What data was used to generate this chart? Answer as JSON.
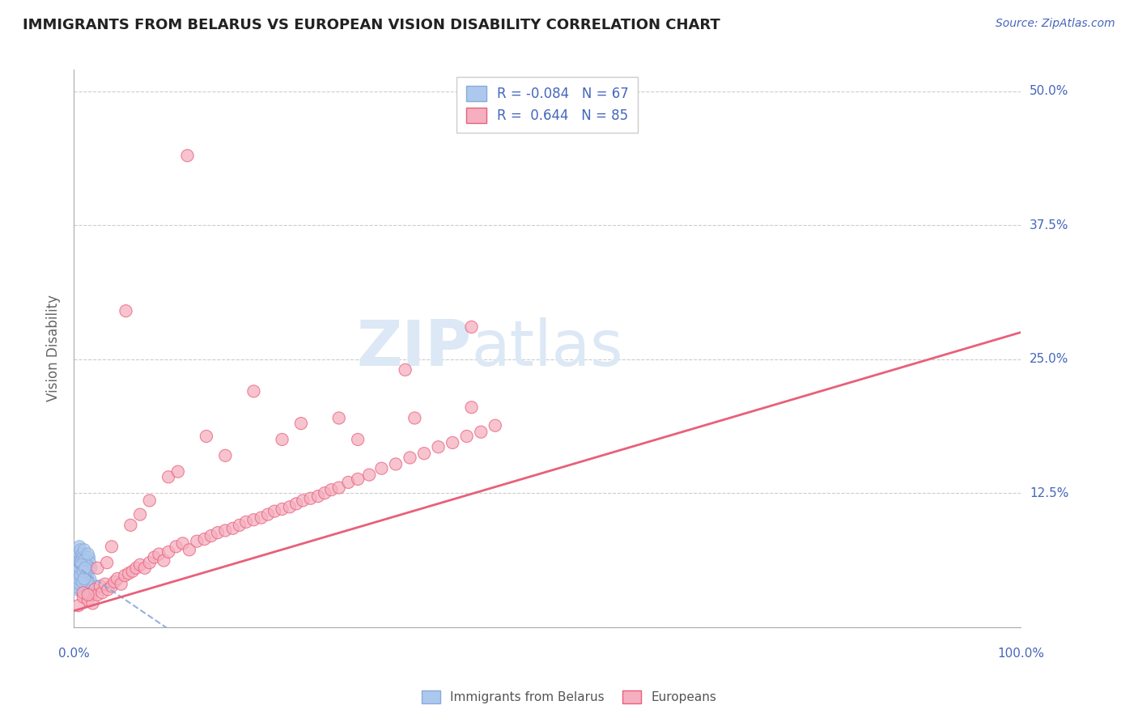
{
  "title": "IMMIGRANTS FROM BELARUS VS EUROPEAN VISION DISABILITY CORRELATION CHART",
  "source": "Source: ZipAtlas.com",
  "ylabel": "Vision Disability",
  "xlim": [
    0.0,
    1.0
  ],
  "ylim": [
    0.0,
    0.52
  ],
  "x_ticks": [
    0.0,
    0.25,
    0.5,
    0.75,
    1.0
  ],
  "y_ticks": [
    0.0,
    0.125,
    0.25,
    0.375,
    0.5
  ],
  "y_tick_labels": [
    "",
    "12.5%",
    "25.0%",
    "37.5%",
    "50.0%"
  ],
  "legend_r_blue": "-0.084",
  "legend_n_blue": "67",
  "legend_r_pink": "0.644",
  "legend_n_pink": "85",
  "blue_color": "#adc8ee",
  "pink_color": "#f5afc0",
  "line_blue_color": "#8aaad8",
  "line_pink_color": "#e8607a",
  "title_color": "#222222",
  "axis_label_color": "#4466bb",
  "watermark_color": "#dce8f5",
  "background_color": "#ffffff",
  "blue_scatter_x": [
    0.002,
    0.003,
    0.003,
    0.004,
    0.004,
    0.004,
    0.005,
    0.005,
    0.005,
    0.005,
    0.006,
    0.006,
    0.006,
    0.006,
    0.006,
    0.007,
    0.007,
    0.007,
    0.007,
    0.008,
    0.008,
    0.008,
    0.009,
    0.009,
    0.009,
    0.01,
    0.01,
    0.01,
    0.011,
    0.011,
    0.011,
    0.012,
    0.012,
    0.013,
    0.013,
    0.014,
    0.014,
    0.015,
    0.015,
    0.016,
    0.016,
    0.017,
    0.017,
    0.018,
    0.018,
    0.003,
    0.004,
    0.005,
    0.006,
    0.007,
    0.008,
    0.009,
    0.01,
    0.011,
    0.012,
    0.013,
    0.014,
    0.015,
    0.004,
    0.005,
    0.006,
    0.007,
    0.008,
    0.009,
    0.01,
    0.011,
    0.012
  ],
  "blue_scatter_y": [
    0.04,
    0.038,
    0.052,
    0.035,
    0.045,
    0.06,
    0.042,
    0.055,
    0.065,
    0.07,
    0.038,
    0.048,
    0.058,
    0.068,
    0.075,
    0.04,
    0.05,
    0.062,
    0.072,
    0.035,
    0.048,
    0.065,
    0.042,
    0.055,
    0.068,
    0.038,
    0.052,
    0.065,
    0.04,
    0.058,
    0.072,
    0.045,
    0.06,
    0.042,
    0.065,
    0.048,
    0.058,
    0.038,
    0.055,
    0.042,
    0.065,
    0.045,
    0.06,
    0.038,
    0.055,
    0.043,
    0.037,
    0.05,
    0.04,
    0.06,
    0.045,
    0.055,
    0.048,
    0.062,
    0.05,
    0.058,
    0.042,
    0.068,
    0.052,
    0.045,
    0.055,
    0.048,
    0.058,
    0.042,
    0.052,
    0.045,
    0.055
  ],
  "pink_scatter_x": [
    0.005,
    0.01,
    0.015,
    0.018,
    0.02,
    0.022,
    0.025,
    0.028,
    0.03,
    0.033,
    0.036,
    0.04,
    0.043,
    0.046,
    0.05,
    0.054,
    0.058,
    0.062,
    0.066,
    0.07,
    0.075,
    0.08,
    0.085,
    0.09,
    0.095,
    0.1,
    0.108,
    0.115,
    0.122,
    0.13,
    0.138,
    0.145,
    0.152,
    0.16,
    0.168,
    0.175,
    0.182,
    0.19,
    0.198,
    0.205,
    0.212,
    0.22,
    0.228,
    0.235,
    0.242,
    0.25,
    0.258,
    0.265,
    0.272,
    0.28,
    0.29,
    0.3,
    0.312,
    0.325,
    0.34,
    0.355,
    0.37,
    0.385,
    0.4,
    0.415,
    0.43,
    0.445,
    0.01,
    0.025,
    0.04,
    0.06,
    0.08,
    0.1,
    0.14,
    0.19,
    0.24,
    0.3,
    0.36,
    0.42,
    0.42,
    0.35,
    0.28,
    0.22,
    0.16,
    0.11,
    0.07,
    0.035,
    0.015,
    0.055,
    0.12
  ],
  "pink_scatter_y": [
    0.02,
    0.028,
    0.025,
    0.03,
    0.022,
    0.035,
    0.03,
    0.038,
    0.032,
    0.04,
    0.035,
    0.038,
    0.042,
    0.045,
    0.04,
    0.048,
    0.05,
    0.052,
    0.055,
    0.058,
    0.055,
    0.06,
    0.065,
    0.068,
    0.062,
    0.07,
    0.075,
    0.078,
    0.072,
    0.08,
    0.082,
    0.085,
    0.088,
    0.09,
    0.092,
    0.095,
    0.098,
    0.1,
    0.102,
    0.105,
    0.108,
    0.11,
    0.112,
    0.115,
    0.118,
    0.12,
    0.122,
    0.125,
    0.128,
    0.13,
    0.135,
    0.138,
    0.142,
    0.148,
    0.152,
    0.158,
    0.162,
    0.168,
    0.172,
    0.178,
    0.182,
    0.188,
    0.032,
    0.055,
    0.075,
    0.095,
    0.118,
    0.14,
    0.178,
    0.22,
    0.19,
    0.175,
    0.195,
    0.205,
    0.28,
    0.24,
    0.195,
    0.175,
    0.16,
    0.145,
    0.105,
    0.06,
    0.03,
    0.295,
    0.44
  ]
}
